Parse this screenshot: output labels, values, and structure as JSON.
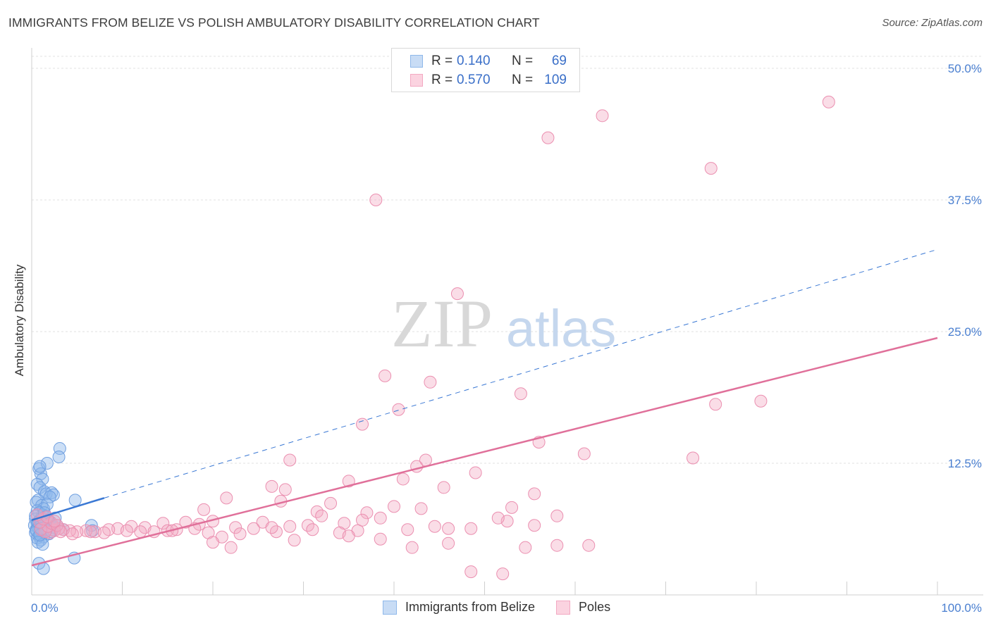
{
  "header": {
    "title": "IMMIGRANTS FROM BELIZE VS POLISH AMBULATORY DISABILITY CORRELATION CHART",
    "source": "Source: ZipAtlas.com"
  },
  "legend": {
    "rows": [
      {
        "r_label": "R =",
        "r_value": "0.140",
        "n_label": "N =",
        "n_value": "69",
        "color": "#8fb8ea"
      },
      {
        "r_label": "R =",
        "r_value": "0.570",
        "n_label": "N =",
        "n_value": "109",
        "color": "#f3a9c2"
      }
    ]
  },
  "bottom_legend": {
    "items": [
      {
        "label": "Immigrants from Belize",
        "color": "#8fb8ea"
      },
      {
        "label": "Poles",
        "color": "#f3a9c2"
      }
    ]
  },
  "watermark": {
    "zip": "ZIP",
    "atlas": "atlas"
  },
  "chart_data": {
    "type": "scatter",
    "title": "IMMIGRANTS FROM BELIZE VS POLISH AMBULATORY DISABILITY CORRELATION CHART",
    "xlabel": "",
    "ylabel": "Ambulatory Disability",
    "xlim": [
      0,
      100
    ],
    "ylim": [
      0,
      50
    ],
    "x_tick_labels": [
      "0.0%",
      "100.0%"
    ],
    "y_ticks": [
      {
        "value": 12.5,
        "label": "12.5%"
      },
      {
        "value": 25,
        "label": "25.0%"
      },
      {
        "value": 37.5,
        "label": "37.5%"
      },
      {
        "value": 50,
        "label": "50.0%"
      }
    ],
    "grid": true,
    "colors": {
      "blue": "#8fb8ea",
      "blue_line": "#3a78d4",
      "pink": "#f3a9c2",
      "pink_line": "#e0709a"
    },
    "series": [
      {
        "name": "Immigrants from Belize",
        "color": "blue",
        "points": [
          [
            0.8,
            12.0
          ],
          [
            1.0,
            11.5
          ],
          [
            1.2,
            11.0
          ],
          [
            0.6,
            10.5
          ],
          [
            0.9,
            10.2
          ],
          [
            1.4,
            9.8
          ],
          [
            1.6,
            9.6
          ],
          [
            2.2,
            9.7
          ],
          [
            2.4,
            9.5
          ],
          [
            2.0,
            9.3
          ],
          [
            0.7,
            9.0
          ],
          [
            0.5,
            8.8
          ],
          [
            1.1,
            8.5
          ],
          [
            1.7,
            8.6
          ],
          [
            1.3,
            8.2
          ],
          [
            0.6,
            8.0
          ],
          [
            0.8,
            7.8
          ],
          [
            1.2,
            7.6
          ],
          [
            1.5,
            7.4
          ],
          [
            2.6,
            7.3
          ],
          [
            0.4,
            7.2
          ],
          [
            0.9,
            7.0
          ],
          [
            1.6,
            7.0
          ],
          [
            2.1,
            6.9
          ],
          [
            0.6,
            6.8
          ],
          [
            1.0,
            6.7
          ],
          [
            1.4,
            6.6
          ],
          [
            1.8,
            6.5
          ],
          [
            0.3,
            6.6
          ],
          [
            0.7,
            6.4
          ],
          [
            1.2,
            6.3
          ],
          [
            2.3,
            6.2
          ],
          [
            0.5,
            6.2
          ],
          [
            0.9,
            6.0
          ],
          [
            1.5,
            6.0
          ],
          [
            0.4,
            5.9
          ],
          [
            1.1,
            5.8
          ],
          [
            1.9,
            5.8
          ],
          [
            0.8,
            5.6
          ],
          [
            1.3,
            5.5
          ],
          [
            0.6,
            5.4
          ],
          [
            1.0,
            5.2
          ],
          [
            0.7,
            5.0
          ],
          [
            1.2,
            4.8
          ],
          [
            3.1,
            13.9
          ],
          [
            3.0,
            13.1
          ],
          [
            1.7,
            12.5
          ],
          [
            0.9,
            12.2
          ],
          [
            1.0,
            7.2
          ],
          [
            2.0,
            6.8
          ],
          [
            3.5,
            6.2
          ],
          [
            4.8,
            9.0
          ],
          [
            6.6,
            6.6
          ],
          [
            6.7,
            6.1
          ],
          [
            4.7,
            3.5
          ],
          [
            0.8,
            3.0
          ],
          [
            1.3,
            2.5
          ],
          [
            0.5,
            6.1
          ],
          [
            1.8,
            7.1
          ],
          [
            2.5,
            6.4
          ],
          [
            1.1,
            6.9
          ],
          [
            0.4,
            7.5
          ],
          [
            1.6,
            6.2
          ],
          [
            2.8,
            6.6
          ],
          [
            0.9,
            5.7
          ],
          [
            1.4,
            7.8
          ],
          [
            2.2,
            6.0
          ],
          [
            0.7,
            6.9
          ],
          [
            1.0,
            6.3
          ]
        ]
      },
      {
        "name": "Poles",
        "color": "pink",
        "points": [
          [
            38.0,
            37.5
          ],
          [
            57.0,
            43.4
          ],
          [
            63.0,
            45.5
          ],
          [
            75.0,
            40.5
          ],
          [
            88.0,
            46.8
          ],
          [
            47.0,
            28.6
          ],
          [
            39.0,
            20.8
          ],
          [
            44.0,
            20.2
          ],
          [
            54.0,
            19.1
          ],
          [
            75.5,
            18.1
          ],
          [
            80.5,
            18.4
          ],
          [
            40.5,
            17.6
          ],
          [
            36.5,
            16.2
          ],
          [
            56.0,
            14.5
          ],
          [
            61.0,
            13.4
          ],
          [
            73.0,
            13.0
          ],
          [
            28.5,
            12.8
          ],
          [
            43.5,
            12.8
          ],
          [
            42.5,
            12.2
          ],
          [
            49.0,
            11.6
          ],
          [
            41.0,
            11.0
          ],
          [
            35.0,
            10.8
          ],
          [
            26.5,
            10.3
          ],
          [
            28.0,
            10.0
          ],
          [
            45.5,
            10.2
          ],
          [
            55.5,
            9.6
          ],
          [
            21.5,
            9.2
          ],
          [
            27.5,
            8.9
          ],
          [
            33.0,
            8.7
          ],
          [
            40.0,
            8.4
          ],
          [
            43.0,
            8.2
          ],
          [
            53.0,
            8.3
          ],
          [
            19.0,
            8.1
          ],
          [
            31.5,
            7.9
          ],
          [
            37.0,
            7.8
          ],
          [
            32.0,
            7.5
          ],
          [
            38.5,
            7.3
          ],
          [
            52.5,
            7.0
          ],
          [
            36.5,
            7.1
          ],
          [
            34.5,
            6.8
          ],
          [
            30.5,
            6.6
          ],
          [
            25.5,
            6.9
          ],
          [
            20.0,
            7.0
          ],
          [
            17.0,
            6.9
          ],
          [
            14.5,
            6.8
          ],
          [
            28.5,
            6.5
          ],
          [
            22.5,
            6.4
          ],
          [
            18.5,
            6.7
          ],
          [
            24.5,
            6.3
          ],
          [
            11.0,
            6.5
          ],
          [
            12.5,
            6.4
          ],
          [
            9.5,
            6.3
          ],
          [
            8.5,
            6.2
          ],
          [
            15.0,
            6.1
          ],
          [
            16.0,
            6.2
          ],
          [
            13.5,
            6.0
          ],
          [
            10.5,
            6.1
          ],
          [
            7.0,
            6.0
          ],
          [
            6.0,
            6.1
          ],
          [
            5.0,
            6.0
          ],
          [
            4.2,
            6.1
          ],
          [
            3.5,
            6.2
          ],
          [
            3.0,
            6.3
          ],
          [
            2.5,
            6.1
          ],
          [
            2.0,
            5.9
          ],
          [
            1.5,
            6.0
          ],
          [
            1.0,
            6.2
          ],
          [
            1.8,
            6.5
          ],
          [
            2.2,
            6.8
          ],
          [
            2.8,
            6.6
          ],
          [
            0.9,
            6.9
          ],
          [
            1.3,
            7.2
          ],
          [
            1.7,
            7.4
          ],
          [
            2.5,
            7.0
          ],
          [
            0.6,
            7.6
          ],
          [
            3.2,
            6.0
          ],
          [
            4.5,
            5.8
          ],
          [
            6.5,
            6.0
          ],
          [
            8.0,
            5.9
          ],
          [
            19.5,
            5.9
          ],
          [
            23.0,
            5.8
          ],
          [
            27.0,
            6.0
          ],
          [
            31.0,
            6.2
          ],
          [
            34.0,
            5.9
          ],
          [
            36.0,
            6.1
          ],
          [
            41.5,
            6.2
          ],
          [
            48.5,
            6.3
          ],
          [
            42.0,
            4.5
          ],
          [
            35.0,
            5.6
          ],
          [
            29.0,
            5.2
          ],
          [
            21.0,
            5.5
          ],
          [
            20.0,
            5.0
          ],
          [
            22.0,
            4.5
          ],
          [
            38.5,
            5.3
          ],
          [
            46.0,
            4.9
          ],
          [
            54.5,
            4.5
          ],
          [
            58.0,
            4.7
          ],
          [
            61.5,
            4.7
          ],
          [
            46.0,
            6.3
          ],
          [
            55.5,
            6.6
          ],
          [
            26.5,
            6.4
          ],
          [
            44.5,
            6.5
          ],
          [
            51.5,
            7.3
          ],
          [
            18.0,
            6.3
          ],
          [
            15.5,
            6.1
          ],
          [
            52.0,
            2.0
          ],
          [
            48.5,
            2.2
          ],
          [
            58.0,
            7.5
          ],
          [
            12.0,
            6.0
          ]
        ]
      }
    ],
    "trend_lines": [
      {
        "series": "Immigrants from Belize",
        "style": "solid",
        "x": [
          0,
          8
        ],
        "y": [
          7.1,
          9.2
        ]
      },
      {
        "series": "Immigrants from Belize",
        "style": "dashed",
        "x": [
          8,
          100
        ],
        "y": [
          9.2,
          32.8
        ]
      },
      {
        "series": "Poles",
        "style": "solid",
        "x": [
          0,
          100
        ],
        "y": [
          2.8,
          24.4
        ]
      }
    ]
  }
}
